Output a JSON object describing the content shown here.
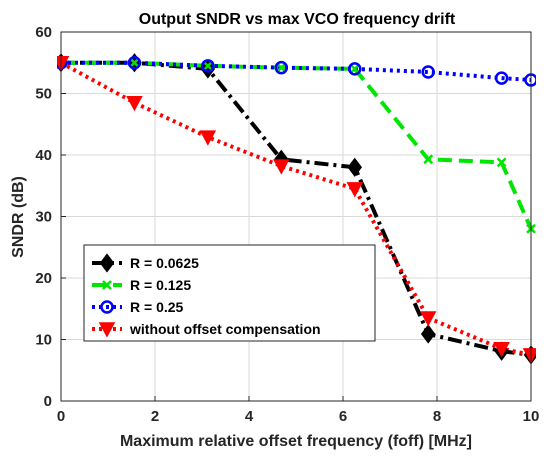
{
  "chart_data": {
    "type": "line",
    "title": "Output SNDR vs max VCO frequency drift",
    "xlabel": "Maximum relative offset frequency (foff) [MHz]",
    "ylabel": "SNDR (dB)",
    "xlim": [
      0,
      10
    ],
    "ylim": [
      0,
      60
    ],
    "xticks": [
      "0",
      "2",
      "4",
      "6",
      "8",
      "10"
    ],
    "yticks": [
      "0",
      "10",
      "20",
      "30",
      "40",
      "50",
      "60"
    ],
    "grid": true,
    "legend_position": "bottom-left",
    "series": [
      {
        "name": "R = 0.0625",
        "color": "#000000",
        "line_style": "dash-dot",
        "marker": "diamond",
        "x": [
          0,
          1.5625,
          3.125,
          4.6875,
          6.25,
          7.8125,
          9.375,
          10
        ],
        "y": [
          55,
          55,
          54,
          39.3,
          38,
          10.9,
          8.1,
          7.5
        ]
      },
      {
        "name": "R = 0.125",
        "color": "#00e600",
        "line_style": "dashed",
        "marker": "x",
        "x": [
          0,
          1.5625,
          3.125,
          4.6875,
          6.25,
          7.8125,
          9.375,
          10
        ],
        "y": [
          55,
          55,
          54.5,
          54.2,
          54,
          39.3,
          38.8,
          28
        ]
      },
      {
        "name": "R = 0.25",
        "color": "#0000ff",
        "line_style": "dotted",
        "marker": "circle",
        "x": [
          0,
          1.5625,
          3.125,
          4.6875,
          6.25,
          7.8125,
          9.375,
          10
        ],
        "y": [
          55,
          55,
          54.5,
          54.2,
          54,
          53.5,
          52.5,
          52.2
        ]
      },
      {
        "name": "without offset compensation",
        "color": "#ff0000",
        "line_style": "dotted",
        "marker": "triangle-down",
        "x": [
          0,
          1.5625,
          3.125,
          4.6875,
          6.25,
          7.8125,
          9.375,
          10
        ],
        "y": [
          55,
          48.5,
          42.9,
          38.2,
          34.5,
          13.5,
          8.5,
          7.5
        ]
      }
    ]
  }
}
